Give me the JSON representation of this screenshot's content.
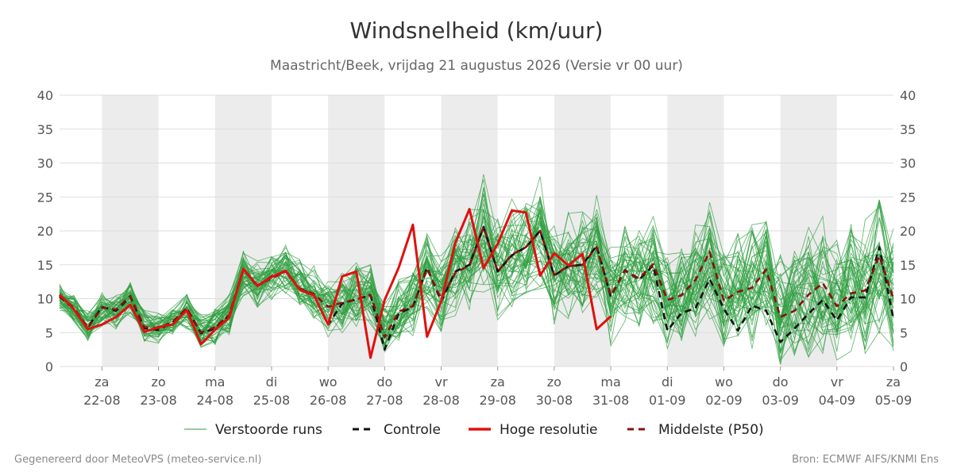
{
  "chart_data": {
    "type": "line",
    "title": "Windsnelheid (km/uur)",
    "subtitle": "Maastricht/Beek, vrijdag 21 augustus 2026 (Versie vr 00 uur)",
    "ylim": [
      0,
      40
    ],
    "yticks": [
      0,
      5,
      10,
      15,
      20,
      25,
      30,
      35,
      40
    ],
    "x_start": "2026-08-21T06:00",
    "x_end": "2026-09-05T00:00",
    "day_ticks": [
      {
        "day": "za",
        "date": "22-08"
      },
      {
        "day": "zo",
        "date": "23-08"
      },
      {
        "day": "ma",
        "date": "24-08"
      },
      {
        "day": "di",
        "date": "25-08"
      },
      {
        "day": "wo",
        "date": "26-08"
      },
      {
        "day": "do",
        "date": "27-08"
      },
      {
        "day": "vr",
        "date": "28-08"
      },
      {
        "day": "za",
        "date": "29-08"
      },
      {
        "day": "zo",
        "date": "30-08"
      },
      {
        "day": "ma",
        "date": "31-08"
      },
      {
        "day": "di",
        "date": "01-09"
      },
      {
        "day": "wo",
        "date": "02-09"
      },
      {
        "day": "do",
        "date": "03-09"
      },
      {
        "day": "vr",
        "date": "04-09"
      },
      {
        "day": "za",
        "date": "05-09"
      }
    ],
    "shaded_days": [
      "22-08",
      "24-08",
      "26-08",
      "28-08",
      "30-08",
      "01-09",
      "03-09"
    ],
    "grid": true,
    "legend_position": "bottom",
    "colors": {
      "ensemble": "#2e9e3e",
      "control": "#111111",
      "high_res": "#e01010",
      "median": "#8b1010",
      "shade": "#ececec",
      "grid": "#dddddd"
    },
    "series": [
      {
        "name": "Controle",
        "x": [
          "2026-08-21T06:00",
          "2026-08-21T12:00",
          "2026-08-21T18:00",
          "2026-08-22T00:00",
          "2026-08-22T06:00",
          "2026-08-22T12:00",
          "2026-08-22T18:00",
          "2026-08-23T00:00",
          "2026-08-23T06:00",
          "2026-08-23T12:00",
          "2026-08-23T18:00",
          "2026-08-24T00:00",
          "2026-08-24T06:00",
          "2026-08-24T12:00",
          "2026-08-24T18:00",
          "2026-08-25T00:00",
          "2026-08-25T06:00",
          "2026-08-25T12:00",
          "2026-08-25T18:00",
          "2026-08-26T00:00",
          "2026-08-26T06:00",
          "2026-08-26T12:00",
          "2026-08-26T18:00",
          "2026-08-27T00:00",
          "2026-08-27T06:00",
          "2026-08-27T12:00",
          "2026-08-27T18:00",
          "2026-08-28T00:00",
          "2026-08-28T06:00",
          "2026-08-28T12:00",
          "2026-08-28T18:00",
          "2026-08-29T00:00",
          "2026-08-29T06:00",
          "2026-08-29T12:00",
          "2026-08-29T18:00",
          "2026-08-30T00:00",
          "2026-08-30T06:00",
          "2026-08-30T12:00",
          "2026-08-30T18:00",
          "2026-08-31T00:00",
          "2026-08-31T06:00",
          "2026-08-31T12:00",
          "2026-08-31T18:00",
          "2026-09-01T00:00",
          "2026-09-01T06:00",
          "2026-09-01T12:00",
          "2026-09-01T18:00",
          "2026-09-02T00:00",
          "2026-09-02T06:00",
          "2026-09-02T12:00",
          "2026-09-02T18:00",
          "2026-09-03T00:00",
          "2026-09-03T06:00",
          "2026-09-03T12:00",
          "2026-09-03T18:00",
          "2026-09-04T00:00",
          "2026-09-04T06:00",
          "2026-09-04T12:00",
          "2026-09-04T18:00",
          "2026-09-05T00:00"
        ],
        "y": [
          10.3,
          8.5,
          5.8,
          8.8,
          8.2,
          10.3,
          5.6,
          5.4,
          6.5,
          8.6,
          4.9,
          5.6,
          7.5,
          14.4,
          11.8,
          13.3,
          14.0,
          11.4,
          10.6,
          6.2,
          9.3,
          9.9,
          10.5,
          2.5,
          7.8,
          8.8,
          14.6,
          9.6,
          14.0,
          15.0,
          20.6,
          14.0,
          16.4,
          17.6,
          20.0,
          13.4,
          14.8,
          15.0,
          17.8,
          10.3,
          14.2,
          12.8,
          14.9,
          5.3,
          7.9,
          8.6,
          12.9,
          8.5,
          5.3,
          9.0,
          8.2,
          3.6,
          5.6,
          7.8,
          9.8,
          6.8,
          10.2,
          10.2,
          17.6,
          7.0
        ]
      },
      {
        "name": "Hoge resolutie",
        "x": [
          "2026-08-21T06:00",
          "2026-08-21T12:00",
          "2026-08-21T18:00",
          "2026-08-22T00:00",
          "2026-08-22T06:00",
          "2026-08-22T12:00",
          "2026-08-22T18:00",
          "2026-08-23T00:00",
          "2026-08-23T06:00",
          "2026-08-23T12:00",
          "2026-08-23T18:00",
          "2026-08-24T00:00",
          "2026-08-24T06:00",
          "2026-08-24T12:00",
          "2026-08-24T18:00",
          "2026-08-25T00:00",
          "2026-08-25T06:00",
          "2026-08-25T12:00",
          "2026-08-25T18:00",
          "2026-08-26T00:00",
          "2026-08-26T06:00",
          "2026-08-26T12:00",
          "2026-08-26T18:00",
          "2026-08-27T00:00",
          "2026-08-27T06:00",
          "2026-08-27T12:00",
          "2026-08-27T18:00",
          "2026-08-28T00:00",
          "2026-08-28T06:00",
          "2026-08-28T12:00",
          "2026-08-28T18:00",
          "2026-08-29T00:00",
          "2026-08-29T06:00",
          "2026-08-29T12:00",
          "2026-08-29T18:00",
          "2026-08-30T00:00",
          "2026-08-30T06:00",
          "2026-08-30T12:00",
          "2026-08-30T18:00",
          "2026-08-31T00:00"
        ],
        "y": [
          10.6,
          8.5,
          5.5,
          6.2,
          7.3,
          9.1,
          5.1,
          5.8,
          6.2,
          8.3,
          3.3,
          5.4,
          7.2,
          14.4,
          11.9,
          13.2,
          14.1,
          11.3,
          10.5,
          6.2,
          13.3,
          14.0,
          1.3,
          9.8,
          14.6,
          20.9,
          4.4,
          9.6,
          18.2,
          23.2,
          14.5,
          18.1,
          23.0,
          22.7,
          13.4,
          16.7,
          14.9,
          16.6,
          5.5,
          7.4
        ]
      },
      {
        "name": "Middelste (P50)",
        "x": [
          "2026-08-21T06:00",
          "2026-08-21T12:00",
          "2026-08-21T18:00",
          "2026-08-22T00:00",
          "2026-08-22T06:00",
          "2026-08-22T12:00",
          "2026-08-22T18:00",
          "2026-08-23T00:00",
          "2026-08-23T06:00",
          "2026-08-23T12:00",
          "2026-08-23T18:00",
          "2026-08-24T00:00",
          "2026-08-24T06:00",
          "2026-08-24T12:00",
          "2026-08-24T18:00",
          "2026-08-25T00:00",
          "2026-08-25T06:00",
          "2026-08-25T12:00",
          "2026-08-25T18:00",
          "2026-08-26T00:00",
          "2026-08-26T06:00",
          "2026-08-26T12:00",
          "2026-08-26T18:00",
          "2026-08-27T00:00",
          "2026-08-27T06:00",
          "2026-08-27T12:00",
          "2026-08-27T18:00",
          "2026-08-28T00:00",
          "2026-08-28T06:00",
          "2026-08-28T12:00",
          "2026-08-28T18:00",
          "2026-08-29T00:00",
          "2026-08-29T06:00",
          "2026-08-29T12:00",
          "2026-08-29T18:00",
          "2026-08-30T00:00",
          "2026-08-30T06:00",
          "2026-08-30T12:00",
          "2026-08-30T18:00",
          "2026-08-31T00:00",
          "2026-08-31T06:00",
          "2026-08-31T12:00",
          "2026-08-31T18:00",
          "2026-09-01T00:00",
          "2026-09-01T06:00",
          "2026-09-01T12:00",
          "2026-09-01T18:00",
          "2026-09-02T00:00",
          "2026-09-02T06:00",
          "2026-09-02T12:00",
          "2026-09-02T18:00",
          "2026-09-03T00:00",
          "2026-09-03T06:00",
          "2026-09-03T12:00",
          "2026-09-03T18:00",
          "2026-09-04T00:00",
          "2026-09-04T06:00",
          "2026-09-04T12:00",
          "2026-09-04T18:00",
          "2026-09-05T00:00"
        ],
        "y": [
          10.4,
          8.7,
          5.7,
          8.7,
          8.4,
          10.4,
          5.8,
          5.6,
          6.6,
          8.6,
          5.0,
          5.8,
          7.6,
          14.2,
          12.0,
          13.0,
          14.0,
          11.5,
          10.7,
          8.8,
          9.4,
          9.9,
          10.6,
          4.3,
          8.1,
          8.9,
          14.4,
          10.0,
          13.8,
          14.9,
          20.6,
          14.0,
          16.5,
          17.6,
          20.0,
          13.5,
          14.8,
          15.0,
          17.6,
          10.5,
          14.1,
          13.0,
          15.1,
          9.8,
          10.5,
          12.8,
          16.9,
          9.7,
          11.0,
          11.6,
          14.3,
          7.3,
          8.2,
          10.6,
          12.3,
          8.9,
          10.8,
          11.2,
          16.3,
          10.0
        ]
      },
      {
        "name": "Verstoorde runs",
        "x_step_hours": 6,
        "note_members": 50,
        "center": [
          10.2,
          8.6,
          6.0,
          8.4,
          8.2,
          10.0,
          6.0,
          5.8,
          6.6,
          8.4,
          5.0,
          5.8,
          7.6,
          13.8,
          12.0,
          13.2,
          14.0,
          12.0,
          11.0,
          8.6,
          9.4,
          10.2,
          10.6,
          5.0,
          8.4,
          9.4,
          14.0,
          10.6,
          14.2,
          15.6,
          19.6,
          14.6,
          16.6,
          17.6,
          19.4,
          14.0,
          15.0,
          15.2,
          17.0,
          11.0,
          13.8,
          13.0,
          14.6,
          10.4,
          11.0,
          12.6,
          15.8,
          10.4,
          11.2,
          11.8,
          14.0,
          8.4,
          9.0,
          10.6,
          12.0,
          9.4,
          11.0,
          11.6,
          14.8,
          10.6
        ],
        "spread": [
          1.6,
          1.8,
          2.0,
          2.2,
          2.2,
          2.4,
          2.0,
          2.0,
          2.0,
          2.4,
          2.4,
          2.4,
          2.6,
          3.0,
          3.0,
          3.0,
          3.2,
          3.4,
          3.6,
          3.8,
          4.0,
          4.2,
          4.0,
          3.6,
          4.4,
          4.8,
          5.6,
          5.0,
          5.6,
          6.4,
          7.0,
          6.4,
          6.6,
          6.8,
          7.0,
          6.4,
          6.6,
          6.8,
          7.0,
          6.6,
          6.8,
          7.0,
          7.2,
          6.8,
          7.0,
          7.2,
          7.4,
          7.4,
          7.6,
          7.8,
          8.0,
          7.8,
          8.0,
          8.2,
          8.4,
          8.2,
          8.4,
          8.4,
          8.6,
          8.6
        ]
      }
    ],
    "legend": [
      {
        "key": "ensemble",
        "label": "Verstoorde runs"
      },
      {
        "key": "control",
        "label": "Controle"
      },
      {
        "key": "high_res",
        "label": "Hoge resolutie"
      },
      {
        "key": "median",
        "label": "Middelste (P50)"
      }
    ]
  },
  "footer": {
    "left": "Gegenereerd door MeteoVPS (meteo-service.nl)",
    "right": "Bron: ECMWF AIFS/KNMI Ens"
  }
}
